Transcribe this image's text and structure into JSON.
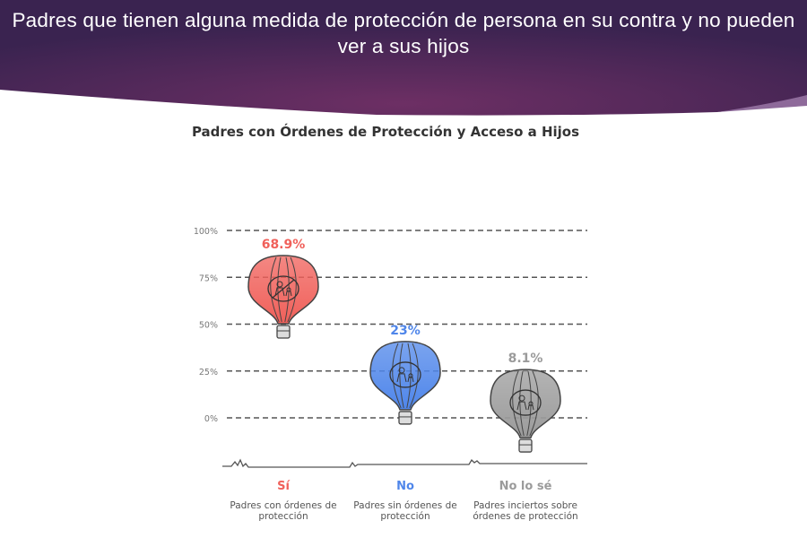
{
  "slide": {
    "title": "Padres que tienen alguna medida de protección de persona en su contra y no pueden ver a sus hijos"
  },
  "colors": {
    "header_dark": "#3b2350",
    "header_mid": "#6b2e62",
    "si": "#f0605a",
    "no": "#4f86ea",
    "unsure": "#9b9b9b"
  },
  "chart_data": {
    "type": "scatter",
    "title": "Padres con Órdenes de Protección y Acceso a Hijos",
    "ylim": [
      0,
      100
    ],
    "yticks": [
      "0%",
      "25%",
      "50%",
      "75%",
      "100%"
    ],
    "ytick_values": [
      0,
      25,
      50,
      75,
      100
    ],
    "grid": true,
    "categories": [
      {
        "name": "Sí",
        "description": "Padres con órdenes de protección",
        "value": 68.9,
        "label": "68.9%",
        "color": "#f0605a",
        "icon": "no-child-access-icon"
      },
      {
        "name": "No",
        "description": "Padres sin órdenes de protección",
        "value": 23,
        "label": "23%",
        "color": "#4f86ea",
        "icon": "parent-child-icon"
      },
      {
        "name": "No lo sé",
        "description": "Padres inciertos sobre órdenes de protección",
        "value": 8.1,
        "label": "8.1%",
        "color": "#9b9b9b",
        "icon": "locked-people-icon"
      }
    ]
  }
}
